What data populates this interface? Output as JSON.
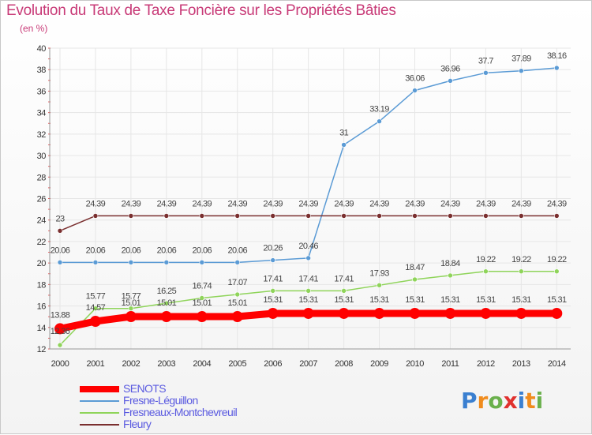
{
  "header": {
    "title": "Evolution du Taux de Taxe Foncière sur les Propriétés Bâties",
    "unit": "(en %)"
  },
  "brand": {
    "name": "Proxiti",
    "letters": [
      "P",
      "r",
      "o",
      "x",
      "i",
      "t",
      "i"
    ],
    "letter_colors": [
      "#3a7fd0",
      "#f08c1e",
      "#6ab04c",
      "#e0312e",
      "#3a7fd0",
      "#f08c1e",
      "#6ab04c"
    ]
  },
  "chart_data": {
    "type": "line",
    "title": "Evolution du Taux de Taxe Foncière sur les Propriétés Bâties",
    "ylabel": "(en %)",
    "xlabel": "",
    "ylim": [
      12,
      40
    ],
    "yticks": [
      12,
      14,
      16,
      18,
      20,
      22,
      24,
      26,
      28,
      30,
      32,
      34,
      36,
      38,
      40
    ],
    "x": [
      "2000",
      "2001",
      "2002",
      "2003",
      "2004",
      "2005",
      "2006",
      "2007",
      "2008",
      "2009",
      "2010",
      "2011",
      "2012",
      "2013",
      "2014"
    ],
    "grid": true,
    "legend_position": "bottom-left",
    "series": [
      {
        "name": "SENOTS",
        "color": "#ff0000",
        "values": [
          13.88,
          14.57,
          15.01,
          15.01,
          15.01,
          15.01,
          15.31,
          15.31,
          15.31,
          15.31,
          15.31,
          15.31,
          15.31,
          15.31,
          15.31
        ],
        "labels": [
          "13.88",
          "14.57",
          "15.01",
          "15.01",
          "15.01",
          "15.01",
          "15.31",
          "15.31",
          "15.31",
          "15.31",
          "15.31",
          "15.31",
          "15.31",
          "15.31",
          "15.31"
        ]
      },
      {
        "name": "Fresne-Léguillon",
        "color": "#5b9bd5",
        "values": [
          20.06,
          20.06,
          20.06,
          20.06,
          20.06,
          20.06,
          20.26,
          20.46,
          31,
          33.19,
          36.06,
          36.96,
          37.7,
          37.89,
          38.16
        ],
        "labels": [
          "20.06",
          "20.06",
          "20.06",
          "20.06",
          "20.06",
          "20.06",
          "20.26",
          "20.46",
          "31",
          "33.19",
          "36.06",
          "36.96",
          "37.7",
          "37.89",
          "38.16"
        ]
      },
      {
        "name": "Fresneaux-Montchevreuil",
        "color": "#8fd45a",
        "values": [
          12.36,
          15.77,
          15.77,
          16.25,
          16.74,
          17.07,
          17.41,
          17.41,
          17.41,
          17.93,
          18.47,
          18.84,
          19.22,
          19.22,
          19.22
        ],
        "labels": [
          "12.36",
          "15.77",
          "15.77",
          "16.25",
          "16.74",
          "17.07",
          "17.41",
          "17.41",
          "17.41",
          "17.93",
          "18.47",
          "18.84",
          "19.22",
          "19.22",
          "19.22"
        ]
      },
      {
        "name": "Fleury",
        "color": "#7a2f2f",
        "values": [
          23,
          24.39,
          24.39,
          24.39,
          24.39,
          24.39,
          24.39,
          24.39,
          24.39,
          24.39,
          24.39,
          24.39,
          24.39,
          24.39,
          24.39
        ],
        "labels": [
          "23",
          "24.39",
          "24.39",
          "24.39",
          "24.39",
          "24.39",
          "24.39",
          "24.39",
          "24.39",
          "24.39",
          "24.39",
          "24.39",
          "24.39",
          "24.39",
          "24.39"
        ]
      }
    ]
  }
}
